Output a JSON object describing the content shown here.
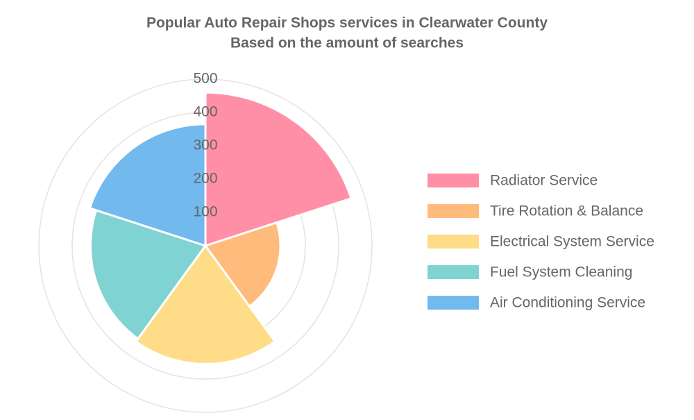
{
  "chart_data": {
    "type": "polarArea",
    "title": [
      "Popular Auto Repair Shops services in Clearwater County",
      "Based on the amount of searches"
    ],
    "categories": [
      "Radiator Service",
      "Tire Rotation & Balance",
      "Electrical System Service",
      "Fuel System Cleaning",
      "Air Conditioning Service"
    ],
    "values": [
      460,
      225,
      355,
      345,
      365
    ],
    "colors": [
      "#ff8fa7",
      "#ffbb7c",
      "#ffdc88",
      "#80d3d3",
      "#72b9ee"
    ],
    "rlim": [
      0,
      500
    ],
    "rticks": [
      100,
      200,
      300,
      400,
      500
    ],
    "grid": true,
    "legend": "right"
  }
}
